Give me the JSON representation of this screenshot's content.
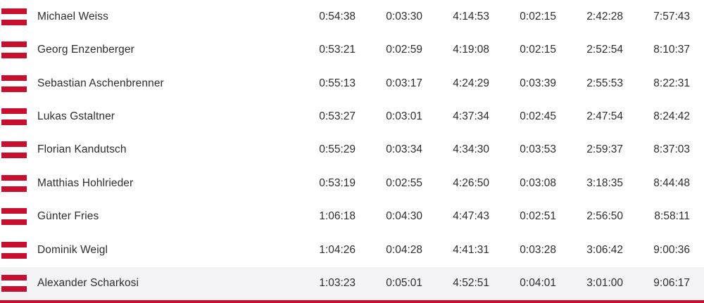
{
  "colors": {
    "flag_red": "#c8102e",
    "accent_bar": "#c8102e",
    "row_highlight": "#f3f3f5"
  },
  "rows": [
    {
      "name": "Michael Weiss",
      "flag": "austria-flag",
      "highlighted": false,
      "times": [
        "0:54:38",
        "0:03:30",
        "4:14:53",
        "0:02:15",
        "2:42:28",
        "7:57:43"
      ]
    },
    {
      "name": "Georg Enzenberger",
      "flag": "austria-flag",
      "highlighted": false,
      "times": [
        "0:53:21",
        "0:02:59",
        "4:19:08",
        "0:02:15",
        "2:52:54",
        "8:10:37"
      ]
    },
    {
      "name": "Sebastian Aschenbrenner",
      "flag": "austria-flag",
      "highlighted": false,
      "times": [
        "0:55:13",
        "0:03:17",
        "4:24:29",
        "0:03:39",
        "2:55:53",
        "8:22:31"
      ]
    },
    {
      "name": "Lukas Gstaltner",
      "flag": "austria-flag",
      "highlighted": false,
      "times": [
        "0:53:27",
        "0:03:01",
        "4:37:34",
        "0:02:45",
        "2:47:54",
        "8:24:42"
      ]
    },
    {
      "name": "Florian Kandutsch",
      "flag": "austria-flag",
      "highlighted": false,
      "times": [
        "0:55:29",
        "0:03:34",
        "4:34:30",
        "0:03:53",
        "2:59:37",
        "8:37:03"
      ]
    },
    {
      "name": "Matthias Hohlrieder",
      "flag": "austria-flag",
      "highlighted": false,
      "times": [
        "0:53:19",
        "0:02:55",
        "4:26:50",
        "0:03:08",
        "3:18:35",
        "8:44:48"
      ]
    },
    {
      "name": "Günter Fries",
      "flag": "austria-flag",
      "highlighted": false,
      "times": [
        "1:06:18",
        "0:04:30",
        "4:47:43",
        "0:02:51",
        "2:56:50",
        "8:58:11"
      ]
    },
    {
      "name": "Dominik Weigl",
      "flag": "austria-flag",
      "highlighted": false,
      "times": [
        "1:04:26",
        "0:04:28",
        "4:41:31",
        "0:03:28",
        "3:06:42",
        "9:00:36"
      ]
    },
    {
      "name": "Alexander Scharkosi",
      "flag": "austria-flag",
      "highlighted": true,
      "times": [
        "1:03:23",
        "0:05:01",
        "4:52:51",
        "0:04:01",
        "3:01:00",
        "9:06:17"
      ]
    }
  ]
}
